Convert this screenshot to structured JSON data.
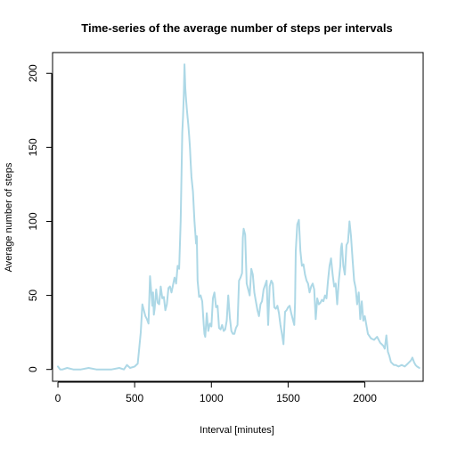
{
  "chart_data": {
    "type": "line",
    "title": "Time-series of the average number of steps per intervals",
    "xlabel": "Interval [minutes]",
    "ylabel": "Average number of steps",
    "xlim": [
      -35,
      2380
    ],
    "ylim": [
      -8,
      214
    ],
    "xticks": [
      0,
      500,
      1000,
      1500,
      2000
    ],
    "yticks": [
      0,
      50,
      100,
      150,
      200
    ],
    "grid": false,
    "series": [
      {
        "color": "#add8e6",
        "x": [
          0,
          15,
          30,
          60,
          100,
          150,
          200,
          250,
          300,
          350,
          400,
          430,
          450,
          470,
          500,
          520,
          540,
          550,
          560,
          570,
          580,
          590,
          600,
          610,
          615,
          620,
          625,
          630,
          640,
          650,
          660,
          670,
          680,
          690,
          700,
          710,
          720,
          730,
          740,
          750,
          760,
          770,
          780,
          790,
          800,
          810,
          815,
          820,
          825,
          830,
          835,
          840,
          845,
          850,
          855,
          860,
          865,
          870,
          880,
          890,
          900,
          905,
          910,
          920,
          930,
          940,
          950,
          955,
          960,
          970,
          980,
          990,
          1000,
          1010,
          1020,
          1030,
          1040,
          1050,
          1060,
          1070,
          1080,
          1090,
          1100,
          1110,
          1120,
          1130,
          1140,
          1150,
          1160,
          1170,
          1180,
          1190,
          1200,
          1205,
          1210,
          1220,
          1230,
          1240,
          1250,
          1260,
          1270,
          1280,
          1290,
          1300,
          1310,
          1320,
          1330,
          1340,
          1350,
          1360,
          1370,
          1380,
          1390,
          1400,
          1410,
          1420,
          1430,
          1440,
          1450,
          1460,
          1470,
          1480,
          1490,
          1500,
          1510,
          1520,
          1530,
          1540,
          1545,
          1550,
          1560,
          1570,
          1580,
          1590,
          1600,
          1610,
          1620,
          1630,
          1640,
          1650,
          1660,
          1670,
          1680,
          1690,
          1700,
          1710,
          1720,
          1730,
          1740,
          1750,
          1760,
          1770,
          1780,
          1790,
          1800,
          1810,
          1820,
          1830,
          1840,
          1845,
          1850,
          1860,
          1870,
          1880,
          1890,
          1900,
          1910,
          1920,
          1930,
          1940,
          1950,
          1960,
          1970,
          1980,
          1990,
          2000,
          2020,
          2040,
          2060,
          2080,
          2100,
          2110,
          2120,
          2130,
          2140,
          2150,
          2160,
          2170,
          2180,
          2190,
          2200,
          2220,
          2240,
          2260,
          2280,
          2300,
          2310,
          2320,
          2330,
          2340,
          2355
        ],
        "y": [
          2,
          0,
          0,
          1,
          0,
          0,
          1,
          0,
          0,
          0,
          1,
          0,
          3,
          1,
          2,
          4,
          25,
          44,
          40,
          36,
          34,
          31,
          63,
          50,
          43,
          52,
          37,
          41,
          54,
          45,
          44,
          56,
          48,
          49,
          40,
          44,
          55,
          56,
          52,
          57,
          62,
          58,
          70,
          68,
          100,
          160,
          170,
          185,
          206,
          190,
          182,
          176,
          170,
          165,
          158,
          150,
          140,
          130,
          120,
          100,
          85,
          90,
          60,
          49,
          50,
          46,
          30,
          24,
          22,
          38,
          26,
          31,
          29,
          48,
          52,
          42,
          43,
          28,
          27,
          30,
          26,
          27,
          33,
          50,
          35,
          26,
          24,
          24,
          28,
          30,
          60,
          62,
          65,
          89,
          95,
          91,
          58,
          54,
          50,
          68,
          64,
          52,
          46,
          40,
          36,
          44,
          46,
          54,
          57,
          60,
          30,
          56,
          60,
          58,
          42,
          41,
          43,
          38,
          30,
          24,
          17,
          39,
          40,
          42,
          43,
          38,
          34,
          30,
          45,
          80,
          98,
          101,
          80,
          70,
          71,
          64,
          60,
          58,
          52,
          56,
          58,
          54,
          34,
          48,
          44,
          45,
          47,
          46,
          50,
          48,
          60,
          70,
          75,
          64,
          56,
          58,
          44,
          60,
          70,
          82,
          85,
          70,
          64,
          84,
          86,
          100,
          90,
          74,
          60,
          55,
          44,
          52,
          34,
          46,
          33,
          36,
          24,
          21,
          20,
          22,
          18,
          17,
          16,
          14,
          23,
          12,
          9,
          5,
          4,
          3,
          3,
          2,
          3,
          2,
          4,
          6,
          8,
          5,
          3,
          2,
          1
        ],
        "points_note": ""
      }
    ]
  }
}
